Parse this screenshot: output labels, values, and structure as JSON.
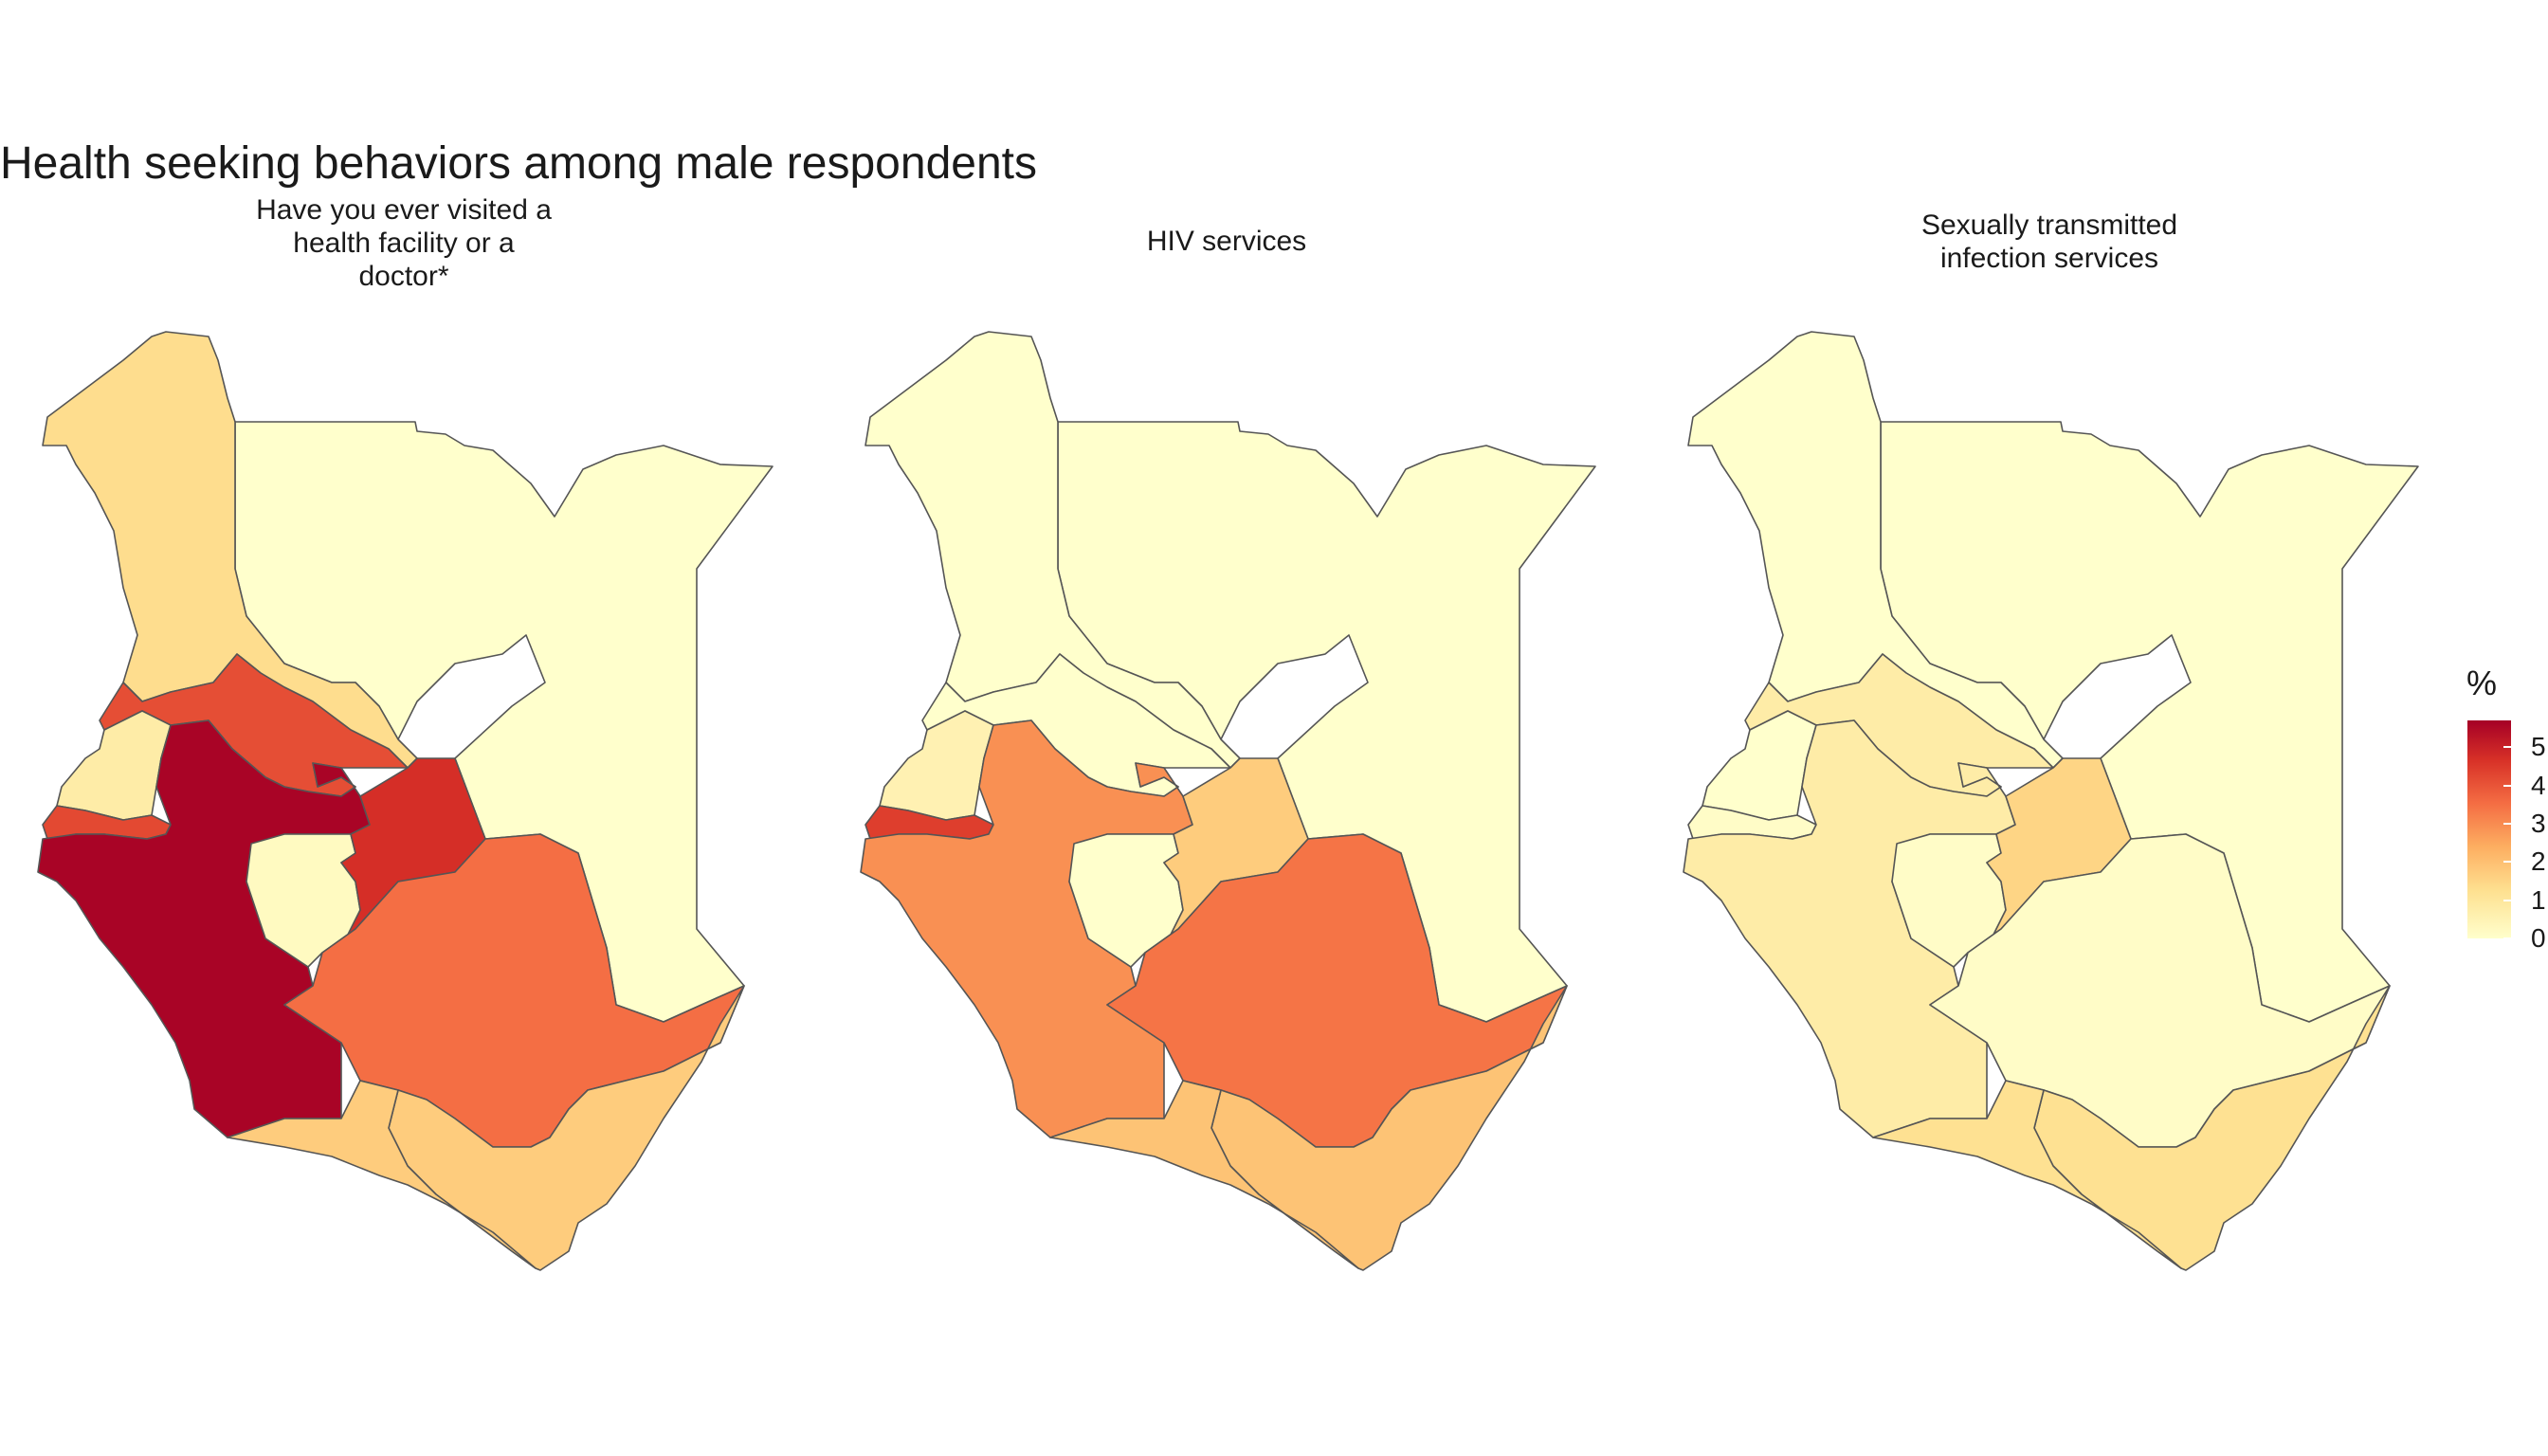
{
  "title": "Health seeking behaviors among male respondents",
  "panels": [
    {
      "label_lines": [
        "Have you ever visited a",
        "health facility or a",
        "doctor*"
      ]
    },
    {
      "label_lines": [
        "HIV services"
      ]
    },
    {
      "label_lines": [
        "Sexually transmitted",
        "infection services"
      ]
    }
  ],
  "legend": {
    "title": "%",
    "ticks": [
      "0",
      "1",
      "2",
      "3",
      "4",
      "5"
    ],
    "max_value": 5.7
  },
  "colors": {
    "scale": [
      "#ffffcc",
      "#fee090",
      "#fdae61",
      "#f46d43",
      "#d73027",
      "#a50026"
    ],
    "border": "#555555"
  },
  "map_values": [
    {
      "turkana": 1.2,
      "north_east": 0.0,
      "upper_rift": 4.0,
      "west_small": 0.7,
      "western": 4.1,
      "nyanza": 5.6,
      "central": 0.2,
      "eastern_north": 4.6,
      "eastern_south": 3.4,
      "coast": 1.6,
      "coast_west": 1.6
    },
    {
      "turkana": 0.0,
      "north_east": 0.0,
      "upper_rift": 0.0,
      "west_small": 0.5,
      "western": 4.3,
      "nyanza": 2.8,
      "central": 0.0,
      "eastern_north": 1.6,
      "eastern_south": 3.3,
      "coast": 1.8,
      "coast_west": 1.8
    },
    {
      "turkana": 0.0,
      "north_east": 0.0,
      "upper_rift": 0.7,
      "west_small": 0.0,
      "western": 0.1,
      "nyanza": 0.7,
      "central": 0.1,
      "eastern_north": 1.4,
      "eastern_south": 0.1,
      "coast": 1.1,
      "coast_west": 1.1
    }
  ]
}
